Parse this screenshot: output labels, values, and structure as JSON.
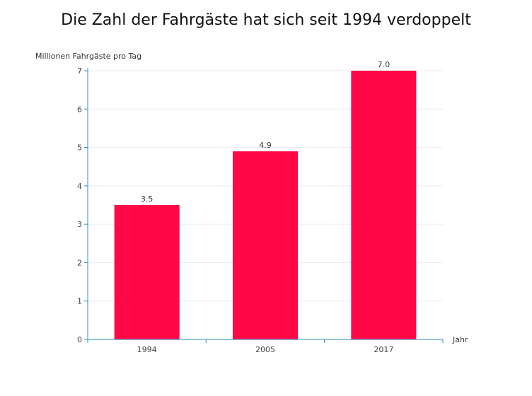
{
  "chart_data": {
    "type": "bar",
    "title": "Die Zahl der Fahrgäste hat sich seit 1994 verdoppelt",
    "xlabel": "Jahr",
    "ylabel": "Millionen Fahrgäste pro Tag",
    "categories": [
      "1994",
      "2005",
      "2017"
    ],
    "values": [
      3.5,
      4.9,
      7.0
    ],
    "value_labels": [
      "3.5",
      "4.9",
      "7.0"
    ],
    "ylim": [
      0,
      7
    ],
    "yticks": [
      0,
      1,
      2,
      3,
      4,
      5,
      6,
      7
    ],
    "grid": true,
    "legend": false,
    "bar_color": "#ff0846",
    "axis_color": "#2b8fc9"
  }
}
